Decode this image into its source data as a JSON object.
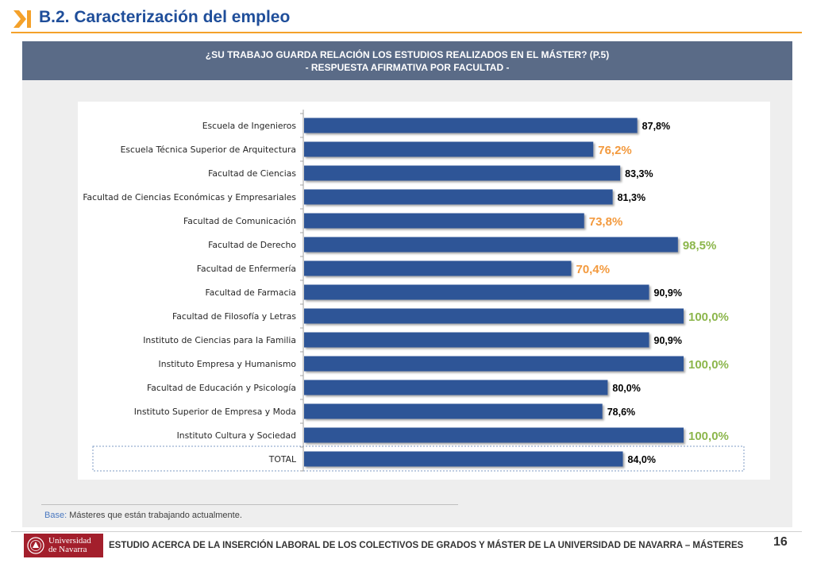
{
  "header": {
    "title": "B.2. Caracterización del empleo"
  },
  "chart_heading": {
    "line1": "¿SU TRABAJO GUARDA RELACIÓN LOS ESTUDIOS REALIZADOS EN EL MÁSTER?  (P.5)",
    "line2": "- RESPUESTA AFIRMATIVA POR FACULTAD -"
  },
  "chart_data": {
    "type": "bar",
    "orientation": "horizontal",
    "categories": [
      "Escuela de Ingenieros",
      "Escuela Técnica Superior de Arquitectura",
      "Facultad de Ciencias",
      "Facultad de Ciencias Económicas y Empresariales",
      "Facultad de Comunicación",
      "Facultad de Derecho",
      "Facultad de Enfermería",
      "Facultad de Farmacia",
      "Facultad de Filosofía y Letras",
      "Instituto de Ciencias para la Familia",
      "Instituto Empresa y Humanismo",
      "Facultad de Educación y Psicología",
      "Instituto Superior de Empresa y Moda",
      "Instituto Cultura y Sociedad",
      "TOTAL"
    ],
    "values": [
      87.8,
      76.2,
      83.3,
      81.3,
      73.8,
      98.5,
      70.4,
      90.9,
      100.0,
      90.9,
      100.0,
      80.0,
      78.6,
      100.0,
      84.0
    ],
    "value_labels": [
      "87,8%",
      "76,2%",
      "83,3%",
      "81,3%",
      "73,8%",
      "98,5%",
      "70,4%",
      "90,9%",
      "100,0%",
      "90,9%",
      "100,0%",
      "80,0%",
      "78,6%",
      "100,0%",
      "84,0%"
    ],
    "label_styles": [
      "normal",
      "low",
      "normal",
      "normal",
      "low",
      "high",
      "low",
      "normal",
      "high",
      "normal",
      "high",
      "normal",
      "normal",
      "high",
      "normal"
    ],
    "xlim": [
      0,
      100
    ],
    "grid": false,
    "highlighted_category": "TOTAL",
    "colors": {
      "bar": "#2f5597",
      "label_normal": "#000000",
      "label_low": "#f39a3e",
      "label_high": "#8cb64c"
    }
  },
  "base_note": {
    "label": "Base:",
    "text": " Másteres que están trabajando actualmente."
  },
  "footer": {
    "logo_line1": "Universidad",
    "logo_line2": "de Navarra",
    "title": "ESTUDIO ACERCA DE LA INSERCIÓN LABORAL DE LOS COLECTIVOS DE GRADOS Y MÁSTER DE LA UNIVERSIDAD DE NAVARRA – MÁSTERES",
    "page_number": "16"
  }
}
